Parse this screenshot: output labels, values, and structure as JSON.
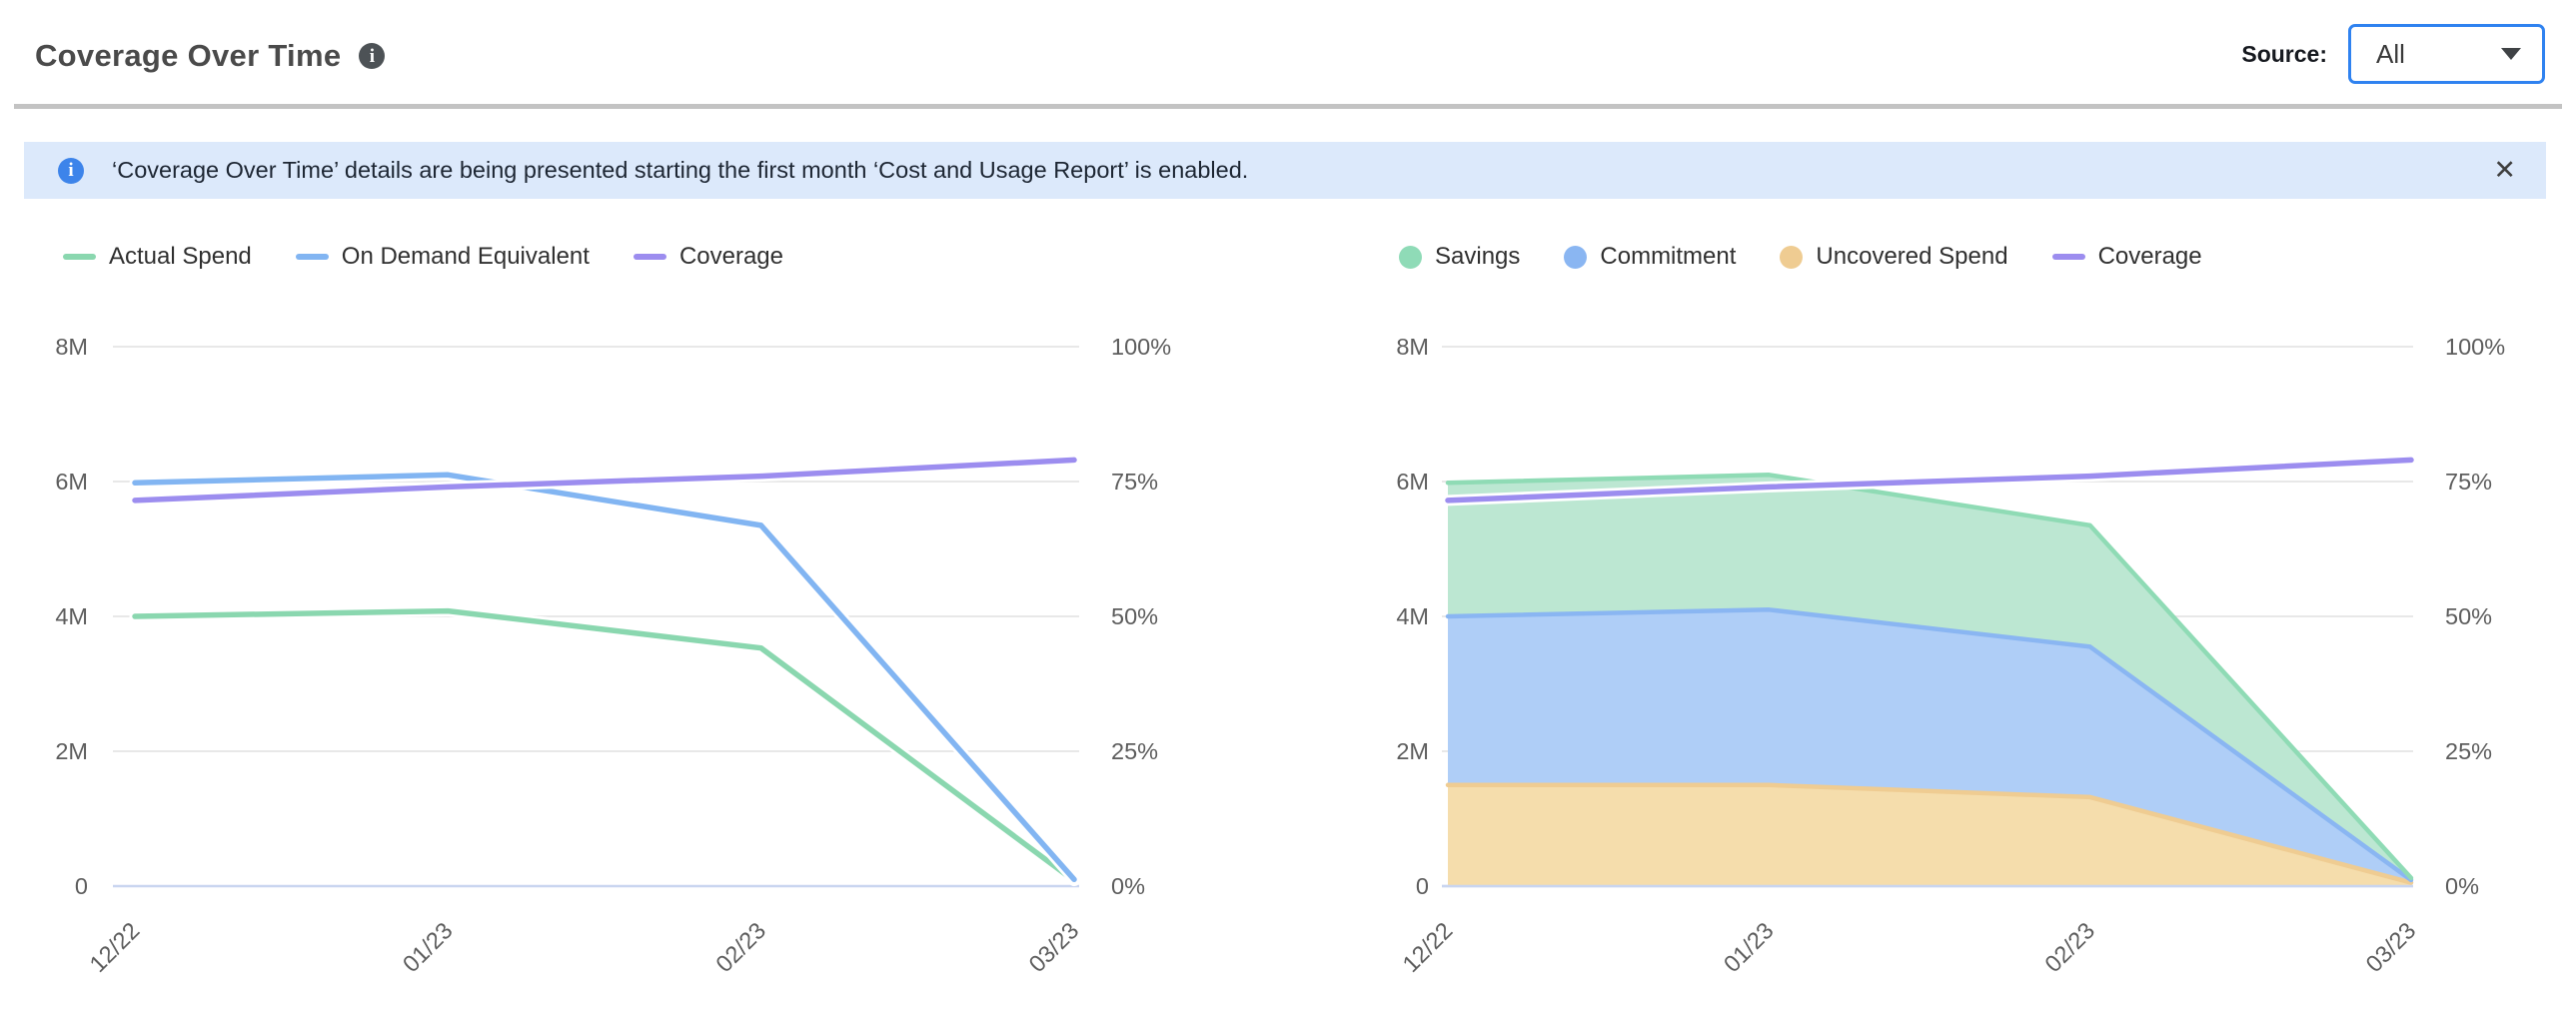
{
  "header": {
    "title": "Coverage Over Time",
    "info_icon": "i",
    "source_label": "Source:",
    "source_value": "All"
  },
  "banner": {
    "icon": "i",
    "text": "‘Coverage Over Time’ details are being presented starting the first month ‘Cost and Usage Report’ is enabled.",
    "close_icon": "✕",
    "background": "#dce9fb",
    "icon_color": "#3d84ea"
  },
  "colors": {
    "green": "#8ad7af",
    "blue": "#82b5f2",
    "purple": "#9c8def",
    "orange_fill": "#f5ddac",
    "orange_stroke": "#efcc92",
    "green_fill": "#bce7d2",
    "green_stroke": "#8fdbb5",
    "blue_fill": "#afcef7",
    "blue_stroke": "#8ab6f2",
    "gridline": "#e8e8e8",
    "baseline": "#c9d5f0",
    "axis_text": "#5d5d5d",
    "dropdown_border": "#2f82f0"
  },
  "chart_data": [
    {
      "type": "line",
      "title": "Coverage Over Time - spend lines",
      "categories": [
        "12/22",
        "01/23",
        "02/23",
        "03/23"
      ],
      "y_left": {
        "ticks": [
          "8M",
          "6M",
          "4M",
          "2M",
          "0"
        ],
        "min": 0,
        "max": 8,
        "unit": "M"
      },
      "y_right": {
        "ticks": [
          "100%",
          "75%",
          "50%",
          "25%",
          "0%"
        ],
        "min": 0,
        "max": 100,
        "unit": "%"
      },
      "grid": true,
      "legend_position": "top-left",
      "legend": [
        {
          "label": "Actual Spend",
          "marker": "line",
          "color": "#8ad7af"
        },
        {
          "label": "On Demand Equivalent",
          "marker": "line",
          "color": "#82b5f2"
        },
        {
          "label": "Coverage",
          "marker": "line",
          "color": "#9c8def"
        }
      ],
      "series": [
        {
          "name": "Actual Spend",
          "axis": "left",
          "kind": "line",
          "color": "#8ad7af",
          "values": [
            4.0,
            4.08,
            3.53,
            0.08
          ]
        },
        {
          "name": "On Demand Equivalent",
          "axis": "left",
          "kind": "line",
          "color": "#82b5f2",
          "values": [
            5.98,
            6.1,
            5.35,
            0.1
          ]
        },
        {
          "name": "Coverage",
          "axis": "right",
          "kind": "line",
          "color": "#9c8def",
          "values": [
            71.5,
            74,
            76,
            79
          ]
        }
      ]
    },
    {
      "type": "area",
      "title": "Coverage Over Time - stacked spend breakdown",
      "categories": [
        "12/22",
        "01/23",
        "02/23",
        "03/23"
      ],
      "y_left": {
        "ticks": [
          "8M",
          "6M",
          "4M",
          "2M",
          "0"
        ],
        "min": 0,
        "max": 8,
        "unit": "M"
      },
      "y_right": {
        "ticks": [
          "100%",
          "75%",
          "50%",
          "25%",
          "0%"
        ],
        "min": 0,
        "max": 100,
        "unit": "%"
      },
      "grid": true,
      "legend_position": "top-left",
      "legend": [
        {
          "label": "Savings",
          "marker": "dot",
          "color": "#8fdbb7"
        },
        {
          "label": "Commitment",
          "marker": "dot",
          "color": "#8ab6f2"
        },
        {
          "label": "Uncovered Spend",
          "marker": "dot",
          "color": "#efcc92"
        },
        {
          "label": "Coverage",
          "marker": "line",
          "color": "#9c8def"
        }
      ],
      "series": [
        {
          "name": "Uncovered Spend",
          "axis": "left",
          "kind": "stack-area",
          "fill": "#f5ddac",
          "stroke": "#efcc92",
          "values": [
            1.5,
            1.5,
            1.32,
            0.05
          ]
        },
        {
          "name": "Commitment",
          "axis": "left",
          "kind": "stack-area",
          "fill": "#afcef7",
          "stroke": "#8ab6f2",
          "values": [
            2.5,
            2.6,
            2.23,
            0.04
          ]
        },
        {
          "name": "Savings",
          "axis": "left",
          "kind": "stack-area",
          "fill": "#bce7d2",
          "stroke": "#8fdbb5",
          "values": [
            1.98,
            2.0,
            1.8,
            0.03
          ]
        },
        {
          "name": "Coverage",
          "axis": "right",
          "kind": "line",
          "color": "#9c8def",
          "values": [
            71.5,
            74,
            76,
            79
          ]
        }
      ]
    }
  ]
}
